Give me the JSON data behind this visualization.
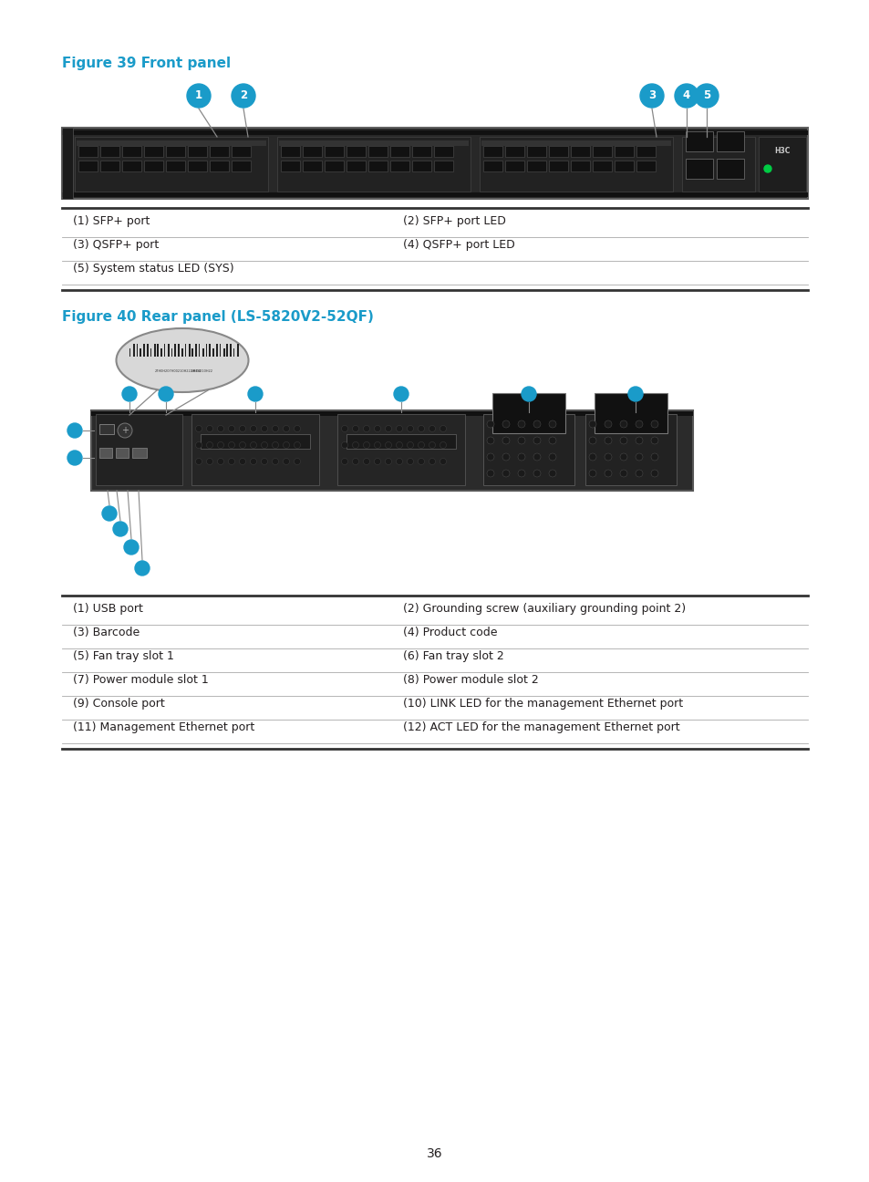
{
  "page_bg": "#ffffff",
  "title_color": "#1a9bc9",
  "text_color": "#231f20",
  "figure1_title": "Figure 39 Front panel",
  "figure2_title": "Figure 40 Rear panel (LS-5820V2-52QF)",
  "fig1_table": [
    [
      "(1) SFP+ port",
      "(2) SFP+ port LED"
    ],
    [
      "(3) QSFP+ port",
      "(4) QSFP+ port LED"
    ],
    [
      "(5) System status LED (SYS)",
      ""
    ]
  ],
  "fig2_table": [
    [
      "(1) USB port",
      "(2) Grounding screw (auxiliary grounding point 2)"
    ],
    [
      "(3) Barcode",
      "(4) Product code"
    ],
    [
      "(5) Fan tray slot 1",
      "(6) Fan tray slot 2"
    ],
    [
      "(7) Power module slot 1",
      "(8) Power module slot 2"
    ],
    [
      "(9) Console port",
      "(10) LINK LED for the management Ethernet port"
    ],
    [
      "(11) Management Ethernet port",
      "(12) ACT LED for the management Ethernet port"
    ]
  ],
  "page_number": "36",
  "callout_color": "#1a9bc9",
  "callout_text_color": "#ffffff",
  "table_top_color": "#333333",
  "table_mid_color": "#aaaaaa"
}
